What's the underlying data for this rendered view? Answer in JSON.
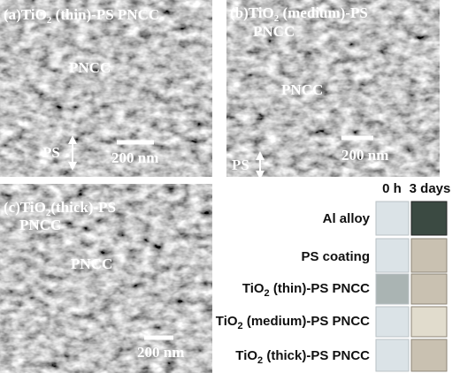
{
  "panels": [
    {
      "letter": "(a)",
      "formula": "TiO",
      "subscript": "2",
      "rest": " (thin)-PS  PNCC",
      "region": "PNCC",
      "layer": "PS",
      "scale": "200 nm"
    },
    {
      "letter": "(b)",
      "formula": "TiO",
      "subscript": "2",
      "rest": " (medium)-PS",
      "line2": "PNCC",
      "region": "PNCC",
      "layer": "PS",
      "scale": "200 nm"
    },
    {
      "letter": "(c)",
      "formula": "TiO",
      "subscript": "2",
      "rest": "(thick)-PS",
      "line2": "PNCC",
      "region": "PNCC",
      "scale": "200 nm"
    }
  ],
  "table": {
    "headers": [
      "0 h",
      "3 days"
    ],
    "rows": [
      {
        "name": "Al alloy"
      },
      {
        "name": "PS coating"
      },
      {
        "formula": "TiO",
        "subscript": "2",
        "rest": " (thin)-PS PNCC"
      },
      {
        "formula": "TiO",
        "subscript": "2",
        "rest": " (medium)-PS PNCC"
      },
      {
        "formula": "TiO",
        "subscript": "2",
        "rest": " (thick)-PS PNCC"
      }
    ]
  }
}
